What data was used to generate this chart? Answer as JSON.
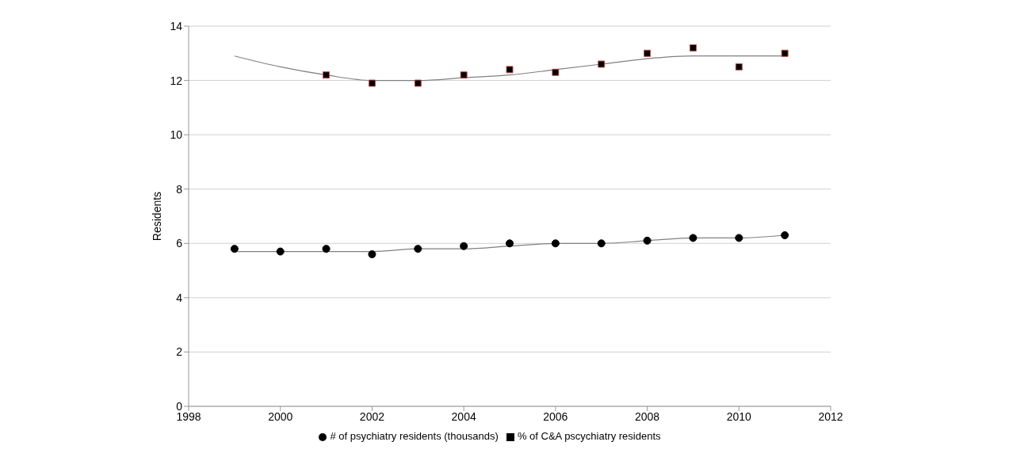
{
  "chart_data": {
    "type": "scatter",
    "ylabel": "Residents",
    "xlim": [
      1998,
      2012
    ],
    "xticks": [
      1998,
      2000,
      2002,
      2004,
      2006,
      2008,
      2010,
      2012
    ],
    "ylim": [
      0,
      14
    ],
    "yticks": [
      0,
      2,
      4,
      6,
      8,
      10,
      12,
      14
    ],
    "grid": "y",
    "legend": "bottom",
    "series": [
      {
        "name": "# of psychiatry residents (thousands)",
        "color": "#000000",
        "marker": "circle",
        "x": [
          1999,
          2000,
          2001,
          2002,
          2003,
          2004,
          2005,
          2006,
          2007,
          2008,
          2009,
          2010,
          2011
        ],
        "values": [
          5.8,
          5.7,
          5.8,
          5.6,
          5.8,
          5.9,
          6.0,
          6.0,
          6.0,
          6.1,
          6.2,
          6.2,
          6.3
        ]
      },
      {
        "name": "% of C&A pscychiatry residents",
        "color": "#000000",
        "marker": "square",
        "x": [
          2001,
          2002,
          2003,
          2004,
          2005,
          2006,
          2007,
          2008,
          2009,
          2010,
          2011
        ],
        "values": [
          12.2,
          11.9,
          11.9,
          12.2,
          12.4,
          12.3,
          12.6,
          13.0,
          13.2,
          12.5,
          13.0
        ]
      },
      {
        "type": "line",
        "color": "#808080",
        "x": [
          1999,
          2000,
          2001,
          2002,
          2003,
          2004,
          2005,
          2006,
          2007,
          2008,
          2009,
          2010,
          2011
        ],
        "values": [
          5.7,
          5.7,
          5.7,
          5.7,
          5.8,
          5.8,
          5.9,
          6.0,
          6.0,
          6.1,
          6.2,
          6.2,
          6.3
        ]
      },
      {
        "type": "line",
        "color": "#808080",
        "x": [
          1999,
          2000,
          2001,
          2002,
          2003,
          2004,
          2005,
          2006,
          2007,
          2008,
          2009,
          2010,
          2011
        ],
        "values": [
          12.9,
          12.5,
          12.2,
          12.0,
          12.0,
          12.1,
          12.2,
          12.4,
          12.6,
          12.8,
          12.9,
          12.9,
          12.9
        ]
      }
    ]
  }
}
